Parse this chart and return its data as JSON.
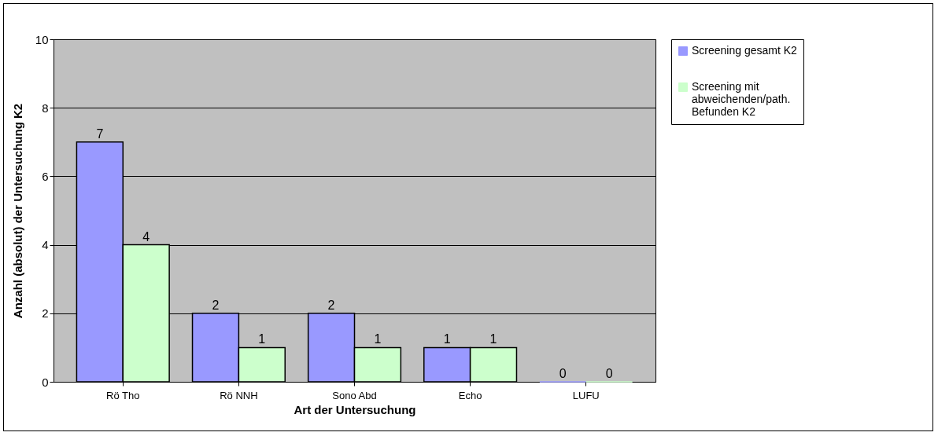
{
  "chart_data": {
    "type": "bar",
    "xlabel": "Art der Untersuchung",
    "ylabel": "Anzahl (absolut) der Untersuchung K2",
    "categories": [
      "Rö Tho",
      "Rö NNH",
      "Sono Abd",
      "Echo",
      "LUFU"
    ],
    "series": [
      {
        "name": "Screening gesamt K2",
        "color": "#9999ff",
        "values": [
          7,
          2,
          2,
          1,
          0
        ]
      },
      {
        "name": "Screening mit abweichenden/path. Befunden K2",
        "color": "#ccffcc",
        "values": [
          4,
          1,
          1,
          1,
          0
        ]
      }
    ],
    "ylim": [
      0,
      10
    ],
    "yticks": [
      0,
      2,
      4,
      6,
      8,
      10
    ],
    "grid": "y",
    "legend": "right",
    "data_labels": true
  }
}
